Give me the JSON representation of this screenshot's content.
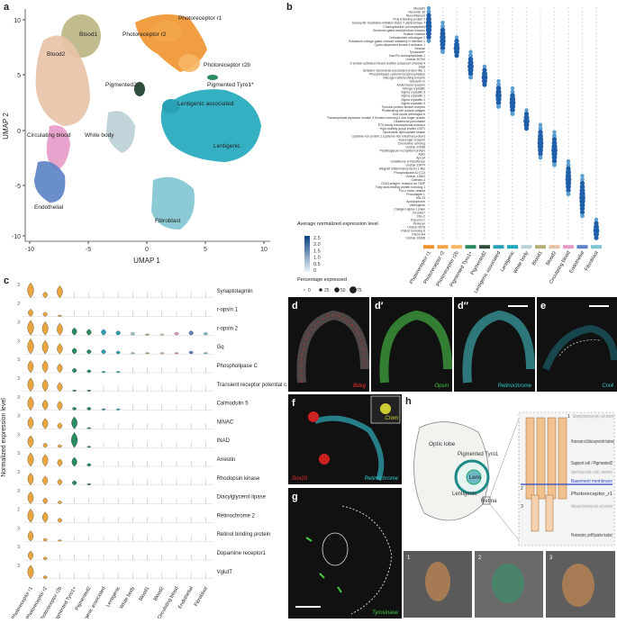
{
  "panels": {
    "a": "a",
    "b": "b",
    "c": "c",
    "d": "d",
    "d1": "d′",
    "d2": "d′′",
    "e": "e",
    "f": "f",
    "g": "g",
    "h": "h"
  },
  "umap": {
    "xlabel": "UMAP 1",
    "ylabel": "UMAP 2",
    "xticks": [
      "-10",
      "-5",
      "0",
      "5",
      "10"
    ],
    "yticks": [
      "10",
      "5",
      "0",
      "-5",
      "-10"
    ],
    "clusters": [
      {
        "name": "Blood1",
        "color": "#b5b07a"
      },
      {
        "name": "Blood2",
        "color": "#e8c2a6"
      },
      {
        "name": "Photoreceptor r1",
        "color": "#f0922e"
      },
      {
        "name": "Photoreceptor r2",
        "color": "#f3a64a"
      },
      {
        "name": "Photoreceptor r2b",
        "color": "#f6b766"
      },
      {
        "name": "Pigmented Tyro1*",
        "color": "#2a8a60"
      },
      {
        "name": "Pigmented2",
        "color": "#2f4d3c"
      },
      {
        "name": "Lentigenic associated",
        "color": "#2aa0b5"
      },
      {
        "name": "Lentigenic",
        "color": "#1fa7bd"
      },
      {
        "name": "White body",
        "color": "#b9cfd6"
      },
      {
        "name": "Circulating blood",
        "color": "#e59ac8"
      },
      {
        "name": "Endothelial",
        "color": "#5a82c4"
      },
      {
        "name": "Fibroblast",
        "color": "#7fc5d2"
      }
    ]
  },
  "dotplot": {
    "genes": [
      "Musashi",
      "Neuronin 36",
      "Neurofilament",
      "Poly A binding protein 2",
      "Eukaryotic translation initiation factor 2 alpha kinase 4",
      "Cholecystokinin (neuropeptide)",
      "Serotonin gated acetylcholine receptor",
      "Sodium channel",
      "Orthodenticle orthologue 2",
      "Potassium voltage-gated channel subfamily H member 1",
      "Cyclin-dependent kinase 5 activator 1",
      "Hexose",
      "Tyrosinase*",
      "Xaa-Pro aminopeptidase 1",
      "Unchar-30794",
      "G protein-activated inward rectifier potassium channel 4",
      "Shell",
      "Schlafen microtubule-associated protein-like 1",
      "Phospholipase cysteine lysophosphatase",
      "Glycogen debranching enzyme",
      "Telesurin-m",
      "Anderovese receptor",
      "Omega crystallin",
      "Sigma crystallin 3",
      "Sigma crystallin 1",
      "Sigma crystallin 2",
      "Sigma crystallin 4",
      "Tyrosine-protein kinase receptor",
      "Proliferating cell nuclear antigen",
      "Sine oculis orthologue 6",
      "Transcriptional repressor scratch 3 Scratch homolog 3 zinc finger protein",
      "Glutathione peroxidase",
      "ETS family transcriptional activator",
      "High-mobility group protein DSP1",
      "Nucleoside diphosphate kinase",
      "Cysteine-rich protein 2 (cysteine-rich intestinal protein)",
      "Scavenger receptor",
      "Chemokine ortholog",
      "Unchar-20908",
      "Peptidoglycan-recognition protein",
      "Actin",
      "Apo14",
      "Glutathione S-transferase",
      "Unchar-15474",
      "Allograft inflammatory factor 1-like",
      "Phospholipase A2 (C2)",
      "Unchar-12661",
      "Galectin-4",
      "CD63 antigen, receptor for TIMP",
      "Fatty acid-binding protein homolog 1",
      "Pro-c-maior-related",
      "Procollagen L",
      "Mlx 23",
      "Apolipophorin",
      "Vitellogenin",
      "Collagen alpha-1 chain",
      "Frizzled7",
      "Titin-2",
      "Troponin C",
      "Perlecan",
      "Unchar-9578",
      "Paired homolog 8",
      "Plexin-A4",
      "Unchar-16438"
    ],
    "groups": [
      "Photoreceptor r1",
      "Photoreceptor r2",
      "Photoreceptor r2b",
      "Pigmented Tyro1+",
      "Pigmented2",
      "Lentigenic associated",
      "Lentigenic",
      "White body",
      "Blood1",
      "Blood2",
      "Circulating blood",
      "Endothelial",
      "Fibroblast"
    ],
    "colors": [
      "#f0922e",
      "#f3a64a",
      "#f6b766",
      "#2a8a60",
      "#2f4d3c",
      "#2aa0b5",
      "#1fa7bd",
      "#b9cfd6",
      "#b5b07a",
      "#e8c2a6",
      "#e59ac8",
      "#5a82c4",
      "#7fc5d2"
    ],
    "color_legend_title": "Average normalized expression level",
    "color_ticks": [
      "2.5",
      "2.0",
      "1.5",
      "1.0",
      "0.5",
      "0"
    ],
    "size_legend_title": "Percentage expressed",
    "size_ticks": [
      "0",
      "25",
      "50",
      "75"
    ]
  },
  "violin": {
    "ylabel": "Normalized expression level",
    "genes": [
      "Synaptotagmin",
      "r-opsin 1",
      "r-opsin 2",
      "Gq",
      "Phospholipase C",
      "Transient receptor potential channel",
      "Calmodulin 5",
      "NINAC",
      "INAD",
      "Arrestin",
      "Rhodopsin kinase",
      "Diacylglycerol lipase",
      "Retinochrome 2",
      "Retinol binding protein",
      "Dopamine receptor1",
      "VglutT"
    ],
    "ymax": [
      "3",
      "2",
      "3",
      "3",
      "3",
      "3",
      "3",
      "3",
      "3",
      "3",
      "3",
      "3",
      "2",
      "3",
      "3",
      "3"
    ],
    "groups": [
      "Photoreceptor r1",
      "Photoreceptor r2",
      "Photoreceptor r2b",
      "Pigmented Tyro1+",
      "Pigmented2",
      "Lentigenic associated",
      "Lentigenic",
      "White body",
      "Blood1",
      "Blood2",
      "Circulating blood",
      "Endothelial",
      "Fibroblast"
    ]
  },
  "micro": {
    "d_label": "Bdeg",
    "d1_label": "Opsin",
    "d2_label": "Retinochrome",
    "e_label": "Crx4",
    "f_label1": "Sox20",
    "f_label2": "Retinochrome",
    "f_inset": "Crom",
    "g_label": "Tyrosinase"
  },
  "schematic": {
    "optic_lobe": "Optic lobe",
    "pigmented": "Pigmented Tyro1",
    "lens": "Lens",
    "lentigenic": "Lentigenic",
    "retina": "Retina",
    "n1": "1",
    "n2": "2",
    "n3": "3",
    "t1": "Distal segments of photoreceptor layer (r-opsin1+, r-opsin2+, retinochrome+)",
    "t2": "Photoreceptor cell (distal segment with rhabdome)",
    "t3": "Support cell / Pigmented2",
    "t4": "Support cell layer (r-opsin1–, r-opsin2–, retinochrome+)",
    "t5": "Basement membrane",
    "t6": "Photoreceptor_r1",
    "t7": "Proximal segments of photoreceptor layer (r-opsin1+, r-opsin2+, retinochrome+)",
    "t8": "Photoreceptor_undiff (putative location)"
  }
}
